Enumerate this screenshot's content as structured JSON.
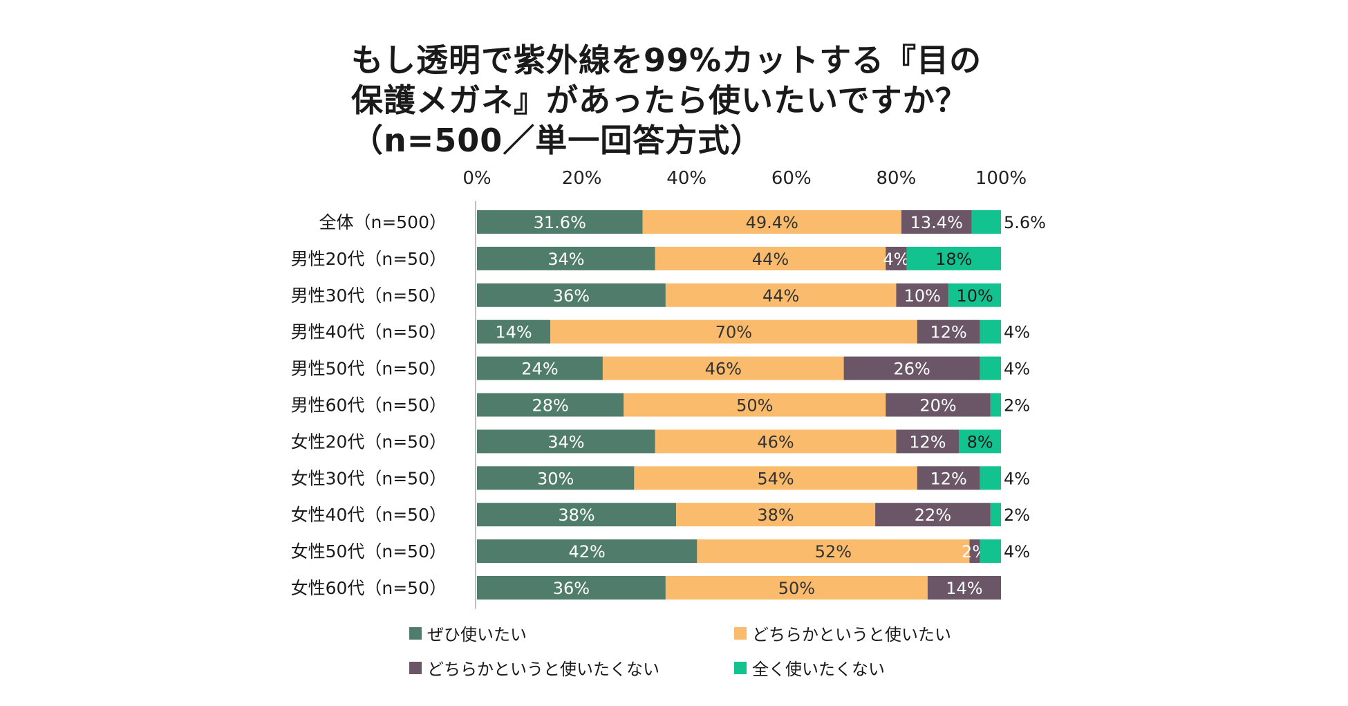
{
  "chart_data": {
    "type": "bar",
    "orientation": "horizontal",
    "stacked": true,
    "title_lines": [
      "もし透明で紫外線を99%カットする『目の",
      "保護メガネ』があったら使いたいですか？",
      "（n=500／単一回答方式）"
    ],
    "categories": [
      "全体（n=500）",
      "男性20代（n=50）",
      "男性30代（n=50）",
      "男性40代（n=50）",
      "男性50代（n=50）",
      "男性60代（n=50）",
      "女性20代（n=50）",
      "女性30代（n=50）",
      "女性40代（n=50）",
      "女性50代（n=50）",
      "女性60代（n=50）"
    ],
    "series": [
      {
        "name": "ぜひ使いたい",
        "color": "#507D6B",
        "values": [
          31.6,
          34,
          36,
          14,
          24,
          28,
          34,
          30,
          38,
          42,
          36
        ],
        "labels": [
          "31.6%",
          "34%",
          "36%",
          "14%",
          "24%",
          "28%",
          "34%",
          "30%",
          "38%",
          "42%",
          "36%"
        ]
      },
      {
        "name": "どちらかというと使いたい",
        "color": "#FBBB6C",
        "values": [
          49.4,
          44,
          44,
          70,
          46,
          50,
          46,
          54,
          38,
          52,
          50
        ],
        "labels": [
          "49.4%",
          "44%",
          "44%",
          "70%",
          "46%",
          "50%",
          "46%",
          "54%",
          "38%",
          "52%",
          "50%"
        ]
      },
      {
        "name": "どちらかというと使いたくない",
        "color": "#6A5666",
        "values": [
          13.4,
          4,
          10,
          12,
          26,
          20,
          12,
          12,
          22,
          2,
          14
        ],
        "labels": [
          "13.4%",
          "4%",
          "10%",
          "12%",
          "26%",
          "20%",
          "12%",
          "12%",
          "22%",
          "2%",
          "14%"
        ]
      },
      {
        "name": "全く使いたくない",
        "color": "#13C38F",
        "values": [
          5.6,
          18,
          10,
          4,
          4,
          2,
          8,
          4,
          2,
          4,
          0
        ],
        "labels": [
          "5.6%",
          "18%",
          "10%",
          "4%",
          "4%",
          "2%",
          "8%",
          "4%",
          "2%",
          "4%",
          ""
        ]
      }
    ],
    "x_axis": {
      "ticks": [
        "0%",
        "20%",
        "40%",
        "60%",
        "80%",
        "100%"
      ],
      "tick_values": [
        0,
        20,
        40,
        60,
        80,
        100
      ],
      "range": [
        0,
        100
      ],
      "position": "top"
    },
    "grid": false,
    "legend_position": "bottom"
  }
}
